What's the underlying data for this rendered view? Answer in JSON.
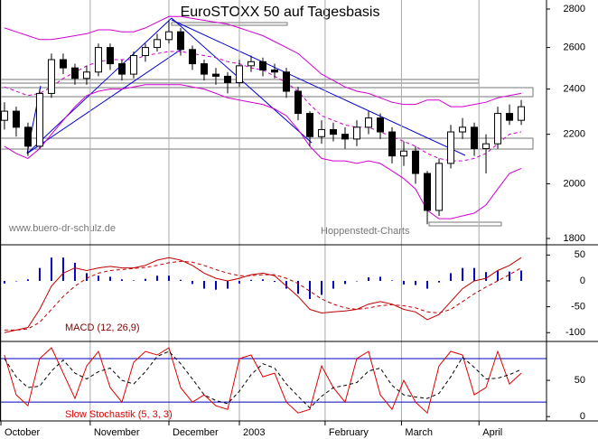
{
  "chart_data": [
    {
      "type": "candlestick",
      "title": "EuroSTOXX 50 auf Tagesbasis",
      "annotations": [
        "www.buero-dr-schulz.de",
        "Hoppenstedt-Charts"
      ],
      "log": true,
      "ylim": [
        1800,
        2800
      ],
      "yticks": [
        1800,
        2000,
        2200,
        2400,
        2600,
        2800
      ],
      "up_color": "#ffffff",
      "down_color": "#000000",
      "open": [
        2260,
        2300,
        2230,
        2150,
        2380,
        2540,
        2500,
        2450,
        2480,
        2600,
        2520,
        2470,
        2560,
        2600,
        2640,
        2680,
        2590,
        2520,
        2470,
        2460,
        2430,
        2510,
        2530,
        2490,
        2480,
        2390,
        2290,
        2190,
        2220,
        2200,
        2180,
        2230,
        2270,
        2210,
        2110,
        2130,
        2040,
        1900,
        2080,
        2210,
        2230,
        2140,
        2160,
        2290,
        2260
      ],
      "high": [
        2340,
        2320,
        2250,
        2400,
        2570,
        2570,
        2520,
        2510,
        2620,
        2620,
        2540,
        2580,
        2620,
        2670,
        2740,
        2700,
        2610,
        2540,
        2500,
        2480,
        2540,
        2560,
        2550,
        2520,
        2500,
        2410,
        2300,
        2260,
        2250,
        2230,
        2260,
        2300,
        2290,
        2230,
        2170,
        2150,
        2050,
        2100,
        2240,
        2270,
        2250,
        2200,
        2320,
        2330,
        2350
      ],
      "low": [
        2220,
        2190,
        2110,
        2140,
        2360,
        2470,
        2420,
        2420,
        2460,
        2490,
        2440,
        2450,
        2530,
        2580,
        2620,
        2560,
        2490,
        2440,
        2420,
        2380,
        2410,
        2480,
        2460,
        2450,
        2360,
        2260,
        2150,
        2160,
        2170,
        2140,
        2150,
        2200,
        2180,
        2080,
        2070,
        2000,
        1850,
        1880,
        2060,
        2180,
        2110,
        2040,
        2140,
        2240,
        2240
      ],
      "close": [
        2300,
        2230,
        2150,
        2380,
        2540,
        2500,
        2450,
        2480,
        2600,
        2520,
        2470,
        2560,
        2600,
        2640,
        2680,
        2590,
        2520,
        2470,
        2460,
        2430,
        2510,
        2530,
        2490,
        2480,
        2390,
        2290,
        2190,
        2220,
        2200,
        2180,
        2230,
        2270,
        2210,
        2110,
        2130,
        2040,
        1900,
        2080,
        2210,
        2230,
        2140,
        2160,
        2290,
        2260,
        2320
      ],
      "series": [
        {
          "color": "#d000d0",
          "dash": false,
          "values": [
            2700,
            2680,
            2660,
            2640,
            2640,
            2650,
            2660,
            2670,
            2690,
            2690,
            2680,
            2680,
            2700,
            2730,
            2760,
            2760,
            2750,
            2740,
            2730,
            2720,
            2700,
            2680,
            2660,
            2630,
            2600,
            2570,
            2520,
            2470,
            2440,
            2410,
            2390,
            2380,
            2360,
            2340,
            2330,
            2330,
            2350,
            2350,
            2320,
            2320,
            2330,
            2340,
            2360,
            2370,
            2380
          ]
        },
        {
          "color": "#d000d0",
          "dash": true,
          "values": [
            2410,
            2390,
            2370,
            2380,
            2410,
            2450,
            2480,
            2510,
            2530,
            2540,
            2540,
            2540,
            2560,
            2570,
            2580,
            2580,
            2570,
            2560,
            2550,
            2530,
            2520,
            2500,
            2490,
            2460,
            2430,
            2390,
            2330,
            2280,
            2260,
            2240,
            2230,
            2230,
            2210,
            2190,
            2170,
            2150,
            2120,
            2100,
            2090,
            2090,
            2100,
            2120,
            2160,
            2200,
            2210
          ]
        },
        {
          "color": "#d000d0",
          "dash": false,
          "values": [
            2150,
            2120,
            2100,
            2140,
            2200,
            2260,
            2320,
            2370,
            2390,
            2400,
            2400,
            2410,
            2420,
            2420,
            2420,
            2420,
            2410,
            2400,
            2380,
            2360,
            2350,
            2340,
            2330,
            2310,
            2280,
            2220,
            2150,
            2100,
            2090,
            2090,
            2080,
            2090,
            2080,
            2050,
            2020,
            1980,
            1900,
            1870,
            1870,
            1880,
            1890,
            1920,
            1980,
            2040,
            2060
          ]
        }
      ]
    },
    {
      "type": "line",
      "label": "MACD (12, 26,9)",
      "label_color": "#800000",
      "ylim": [
        -117,
        68
      ],
      "yticks": [
        -100,
        -50,
        0,
        50
      ],
      "series": [
        {
          "color": "#0000c8",
          "kind": "bar",
          "values": [
            -5,
            0,
            3,
            25,
            45,
            45,
            35,
            15,
            10,
            8,
            3,
            1,
            4,
            10,
            10,
            2,
            -6,
            -15,
            -17,
            -15,
            -5,
            2,
            3,
            -2,
            -15,
            -25,
            -35,
            -27,
            -15,
            -6,
            0,
            7,
            8,
            1,
            -7,
            -8,
            -15,
            -3,
            15,
            25,
            25,
            17,
            20,
            18,
            20
          ]
        },
        {
          "color": "#c00000",
          "dash": false,
          "values": [
            -100,
            -95,
            -90,
            -55,
            -10,
            15,
            25,
            20,
            25,
            28,
            25,
            25,
            30,
            40,
            45,
            40,
            30,
            15,
            5,
            0,
            5,
            12,
            15,
            10,
            -10,
            -30,
            -55,
            -62,
            -60,
            -58,
            -55,
            -45,
            -40,
            -45,
            -55,
            -60,
            -75,
            -65,
            -40,
            -15,
            0,
            5,
            20,
            30,
            45
          ]
        },
        {
          "color": "#c00000",
          "dash": true,
          "values": [
            -95,
            -95,
            -93,
            -80,
            -55,
            -30,
            -10,
            5,
            15,
            20,
            22,
            24,
            26,
            30,
            35,
            38,
            36,
            30,
            22,
            15,
            10,
            10,
            12,
            12,
            5,
            -5,
            -20,
            -35,
            -45,
            -52,
            -55,
            -52,
            -48,
            -46,
            -48,
            -52,
            -60,
            -62,
            -55,
            -40,
            -25,
            -12,
            0,
            12,
            25
          ]
        }
      ]
    },
    {
      "type": "line",
      "label": "Slow Stochastik (5, 3, 3)",
      "label_color": "#e00000",
      "ylim": [
        -6,
        100
      ],
      "yticks": [
        0,
        50
      ],
      "levels": [
        20,
        80
      ],
      "level_color": "#0000c8",
      "xlim": [
        -0.38,
        46.15
      ],
      "xticks": [
        {
          "value": -0.3,
          "label": "October"
        },
        {
          "value": 7.3,
          "label": "November"
        },
        {
          "value": 14,
          "label": "December"
        },
        {
          "value": 20,
          "label": "2003"
        },
        {
          "value": 27.3,
          "label": "February"
        },
        {
          "value": 33.8,
          "label": "March"
        },
        {
          "value": 40.4,
          "label": "April"
        }
      ],
      "series": [
        {
          "color": "#e00000",
          "dash": false,
          "values": [
            85,
            30,
            15,
            80,
            95,
            60,
            25,
            70,
            90,
            40,
            20,
            75,
            90,
            85,
            95,
            40,
            20,
            30,
            15,
            10,
            80,
            85,
            55,
            60,
            20,
            5,
            10,
            70,
            40,
            20,
            80,
            90,
            30,
            10,
            50,
            20,
            5,
            70,
            90,
            85,
            30,
            40,
            90,
            45,
            60
          ]
        },
        {
          "color": "#000000",
          "dash": true,
          "values": [
            80,
            55,
            40,
            42,
            63,
            78,
            60,
            52,
            62,
            67,
            50,
            45,
            62,
            83,
            90,
            73,
            52,
            30,
            22,
            18,
            35,
            58,
            73,
            67,
            45,
            28,
            12,
            28,
            40,
            43,
            47,
            63,
            67,
            43,
            30,
            27,
            25,
            32,
            55,
            82,
            68,
            52,
            53,
            58,
            65
          ]
        }
      ]
    }
  ]
}
